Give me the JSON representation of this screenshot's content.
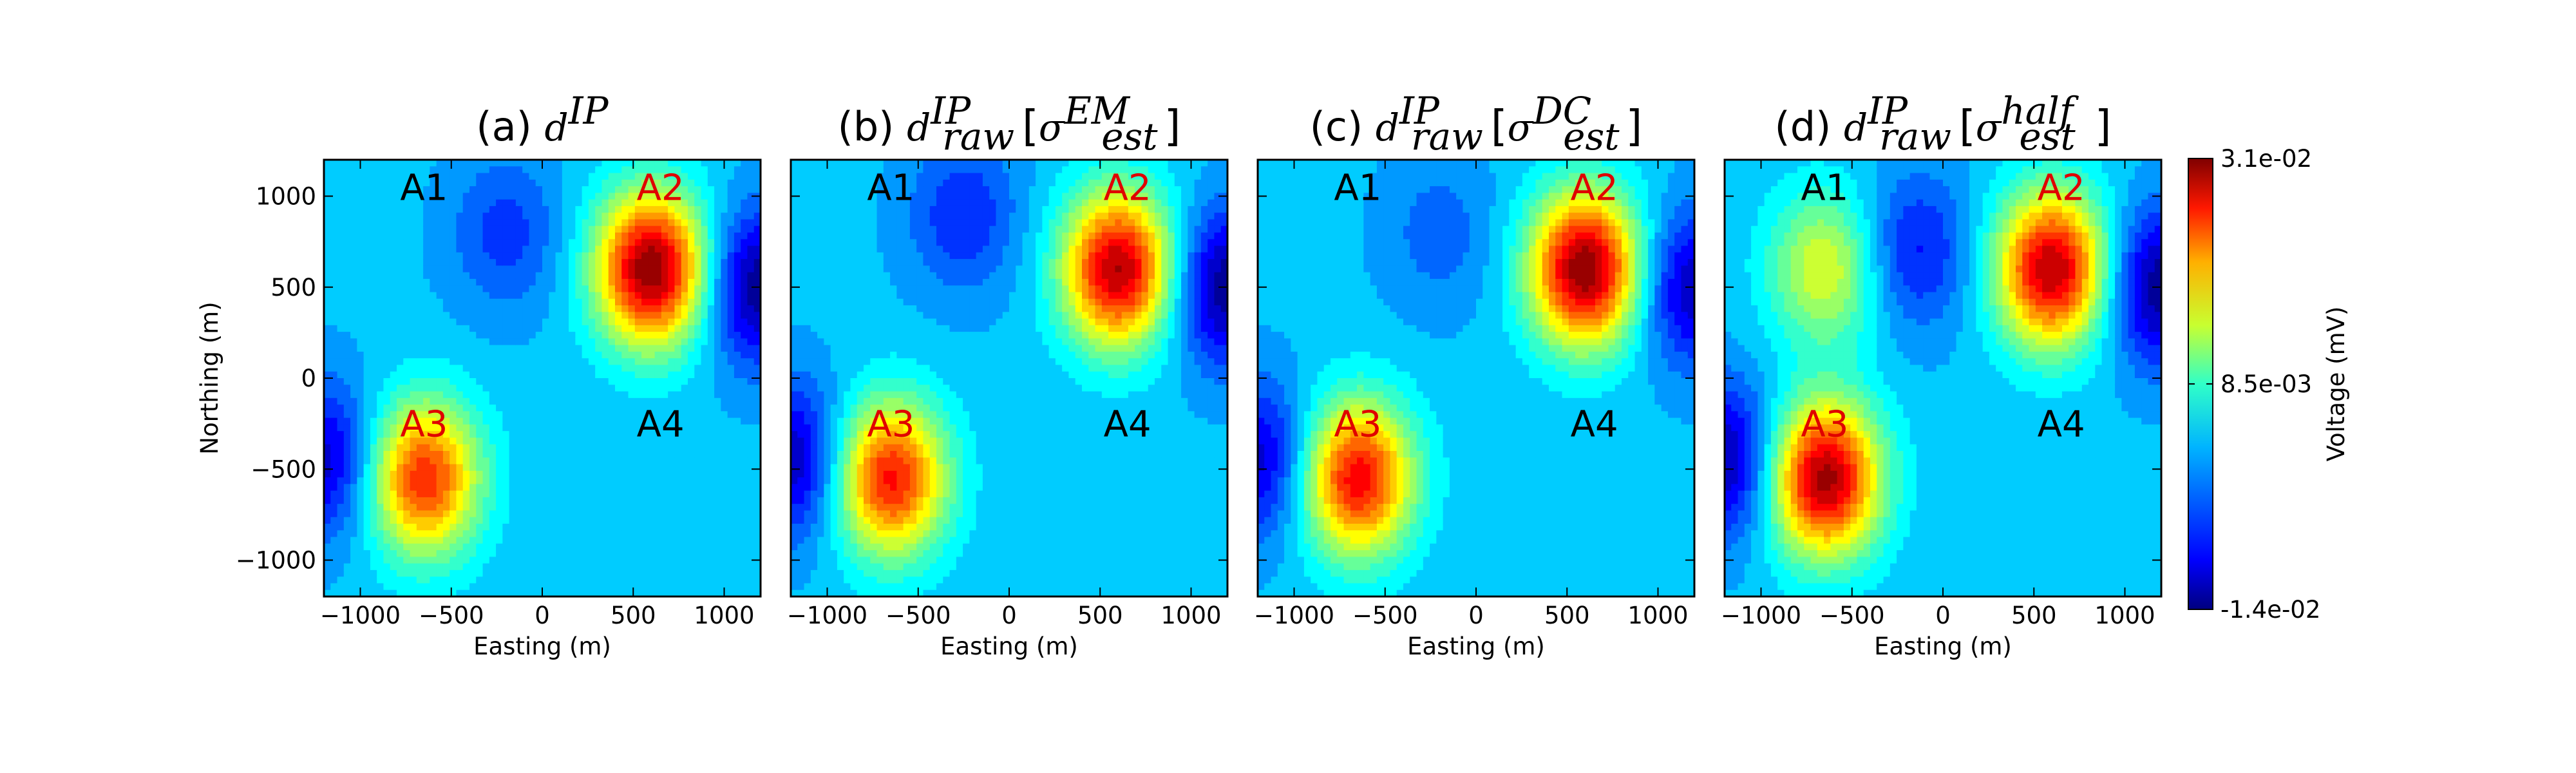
{
  "chart_data": {
    "type": "contour",
    "colormap": "jet",
    "colorbar": {
      "label": "Voltage (mV)",
      "ticks": [
        "3.1e-02",
        "8.5e-03",
        "-1.4e-02"
      ],
      "tick_values": [
        0.031,
        0.0085,
        -0.014
      ],
      "range": [
        -0.014,
        0.031
      ]
    },
    "shared": {
      "xlabel": "Easting (m)",
      "ylabel": "Northing (m)",
      "xticks": [
        -1000,
        -500,
        0,
        500,
        1000
      ],
      "yticks": [
        1000,
        500,
        0,
        -500,
        -1000
      ],
      "xlim": [
        -1200,
        1200
      ],
      "ylim": [
        -1200,
        1200
      ]
    },
    "anomaly_labels": [
      {
        "text": "A1",
        "x": -650,
        "y": 1050,
        "color": "#000000"
      },
      {
        "text": "A2",
        "x": 650,
        "y": 1050,
        "color": "#e00000"
      },
      {
        "text": "A3",
        "x": -650,
        "y": -250,
        "color": "#e00000"
      },
      {
        "text": "A4",
        "x": 650,
        "y": -250,
        "color": "#000000"
      }
    ],
    "panels": [
      {
        "title_prefix": "(a) ",
        "title_base": "d",
        "title_sup": "IP",
        "title_sub": "",
        "bracket_base": "",
        "bracket_sup": "",
        "bracket_sub": "",
        "peaks": [
          {
            "x": 600,
            "y": 600,
            "value": 0.031
          },
          {
            "x": -650,
            "y": -550,
            "value": 0.024
          },
          {
            "x": 1200,
            "y": 500,
            "value": -0.014
          },
          {
            "x": -1200,
            "y": -450,
            "value": -0.011
          },
          {
            "x": -200,
            "y": 800,
            "value": -0.006
          }
        ]
      },
      {
        "title_prefix": "(b) ",
        "title_base": "d",
        "title_sup": "IP",
        "title_sub": "raw",
        "bracket_base": "σ",
        "bracket_sup": "EM",
        "bracket_sub": "est",
        "peaks": [
          {
            "x": 600,
            "y": 600,
            "value": 0.029
          },
          {
            "x": -650,
            "y": -550,
            "value": 0.025
          },
          {
            "x": 1200,
            "y": 500,
            "value": -0.014
          },
          {
            "x": -1200,
            "y": -450,
            "value": -0.012
          },
          {
            "x": -250,
            "y": 900,
            "value": -0.007
          }
        ]
      },
      {
        "title_prefix": "(c) ",
        "title_base": "d",
        "title_sup": "IP",
        "title_sub": "raw",
        "bracket_base": "σ",
        "bracket_sup": "DC",
        "bracket_sub": "est",
        "peaks": [
          {
            "x": 600,
            "y": 600,
            "value": 0.031
          },
          {
            "x": -650,
            "y": -550,
            "value": 0.026
          },
          {
            "x": 1200,
            "y": 500,
            "value": -0.012
          },
          {
            "x": -1200,
            "y": -450,
            "value": -0.011
          },
          {
            "x": -200,
            "y": 800,
            "value": -0.004
          }
        ]
      },
      {
        "title_prefix": "(d) ",
        "title_base": "d",
        "title_sup": "IP",
        "title_sub": "raw",
        "bracket_base": "σ",
        "bracket_sup": "half",
        "bracket_sub": "est",
        "peaks": [
          {
            "x": 600,
            "y": 600,
            "value": 0.029
          },
          {
            "x": -650,
            "y": -550,
            "value": 0.03
          },
          {
            "x": -650,
            "y": 600,
            "value": 0.013
          },
          {
            "x": 1200,
            "y": 500,
            "value": -0.014
          },
          {
            "x": -1200,
            "y": -450,
            "value": -0.013
          },
          {
            "x": -150,
            "y": 700,
            "value": -0.008
          }
        ]
      }
    ]
  }
}
